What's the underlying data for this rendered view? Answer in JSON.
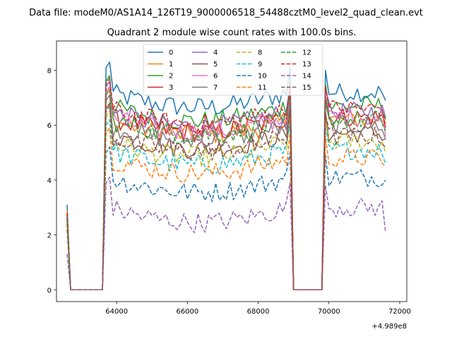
{
  "chart_data": {
    "type": "line",
    "suptitle": "Data file: modeM0/AS1A14_126T19_9000006518_54488cztM0_level2_quad_clean.evt",
    "title": "Quadrant 2 module wise count rates with 100.0s bins.",
    "xlabel": "",
    "ylabel": "",
    "x_offset_label": "+4.989e8",
    "xlim": [
      62300,
      72200
    ],
    "ylim": [
      -0.43,
      9.07
    ],
    "xticks": [
      64000,
      66000,
      68000,
      70000,
      72000
    ],
    "xtick_labels": [
      "64000",
      "66000",
      "68000",
      "70000",
      "72000"
    ],
    "yticks": [
      0,
      2,
      4,
      6,
      8
    ],
    "ytick_labels": [
      "0",
      "2",
      "4",
      "6",
      "8"
    ],
    "grid": false,
    "legend_position": "top-center",
    "legend_columns": 4,
    "segments": [
      {
        "start": 62600,
        "end": 62700
      },
      {
        "start": 63700,
        "end": 68900
      },
      {
        "start": 69900,
        "end": 71600
      }
    ],
    "series": [
      {
        "name": "0",
        "color": "#1f77b4",
        "dash": "solid",
        "mean": 7.2,
        "first": 3.1,
        "last": 6.9
      },
      {
        "name": "1",
        "color": "#ff7f0e",
        "dash": "solid",
        "mean": 6.2,
        "first": 2.9,
        "last": 6.3
      },
      {
        "name": "2",
        "color": "#2ca02c",
        "dash": "solid",
        "mean": 6.7,
        "first": 2.8,
        "last": 6.2
      },
      {
        "name": "3",
        "color": "#d62728",
        "dash": "solid",
        "mean": 6.3,
        "first": 2.7,
        "last": 5.9
      },
      {
        "name": "4",
        "color": "#9467bd",
        "dash": "solid",
        "mean": 6.5,
        "first": 2.8,
        "last": 6.3
      },
      {
        "name": "5",
        "color": "#8c564b",
        "dash": "solid",
        "mean": 5.7,
        "first": 2.6,
        "last": 5.5
      },
      {
        "name": "6",
        "color": "#e377c2",
        "dash": "solid",
        "mean": 6.3,
        "first": 2.7,
        "last": 5.6
      },
      {
        "name": "7",
        "color": "#7f7f7f",
        "dash": "solid",
        "mean": 6.0,
        "first": 2.6,
        "last": 5.5
      },
      {
        "name": "8",
        "color": "#bcbd22",
        "dash": "dashed",
        "mean": 5.4,
        "first": 2.5,
        "last": 5.0
      },
      {
        "name": "9",
        "color": "#17becf",
        "dash": "dashed",
        "mean": 5.1,
        "first": 2.4,
        "last": 4.6
      },
      {
        "name": "10",
        "color": "#1f77b4",
        "dash": "dashed",
        "mean": 4.1,
        "first": 2.2,
        "last": 4.0
      },
      {
        "name": "11",
        "color": "#ff7f0e",
        "dash": "dashed",
        "mean": 4.8,
        "first": 2.4,
        "last": 4.5
      },
      {
        "name": "12",
        "color": "#2ca02c",
        "dash": "dashed",
        "mean": 6.2,
        "first": 2.7,
        "last": 5.8
      },
      {
        "name": "13",
        "color": "#d62728",
        "dash": "dashed",
        "mean": 6.6,
        "first": 2.8,
        "last": 6.0
      },
      {
        "name": "14",
        "color": "#9467bd",
        "dash": "dashed",
        "mean": 3.0,
        "first": 1.3,
        "last": 2.1
      },
      {
        "name": "15",
        "color": "#8c564b",
        "dash": "dashed",
        "mean": 5.6,
        "first": 2.6,
        "last": 5.2
      }
    ]
  }
}
